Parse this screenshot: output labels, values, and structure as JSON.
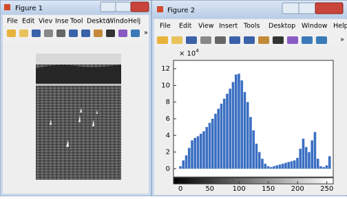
{
  "figure1": {
    "title": "Figure 1",
    "menu": [
      "File",
      "Edit",
      "Viev",
      "Inse",
      "Tool",
      "Desktc",
      "Windo",
      "Helj"
    ],
    "toolbar_more": "»"
  },
  "figure2": {
    "title": "Figure 2",
    "menu": [
      "File",
      "Edit",
      "View",
      "Insert",
      "Tools",
      "Desktop",
      "Window",
      "Help"
    ],
    "toolbar_more": "»"
  },
  "chart_data": {
    "type": "bar",
    "exponent_label": {
      "base": "× 10",
      "power": "4"
    },
    "color": "#3b6fc2",
    "x": [
      0,
      5,
      10,
      15,
      20,
      25,
      30,
      35,
      40,
      45,
      50,
      55,
      60,
      65,
      70,
      75,
      80,
      85,
      90,
      95,
      100,
      105,
      110,
      115,
      120,
      125,
      130,
      135,
      140,
      145,
      150,
      155,
      160,
      165,
      170,
      175,
      180,
      185,
      190,
      195,
      200,
      205,
      210,
      215,
      220,
      225,
      230,
      235,
      240,
      245,
      250,
      255
    ],
    "values": [
      0.3,
      1.0,
      1.6,
      2.5,
      3.4,
      3.7,
      3.9,
      4.2,
      4.5,
      5.0,
      5.5,
      6.0,
      6.6,
      7.2,
      7.8,
      8.4,
      9.0,
      9.6,
      10.4,
      11.3,
      11.4,
      10.6,
      9.2,
      8.0,
      6.2,
      4.6,
      3.0,
      2.0,
      1.2,
      0.6,
      0.3,
      0.2,
      0.3,
      0.4,
      0.5,
      0.6,
      0.7,
      0.8,
      0.9,
      1.0,
      1.3,
      2.4,
      3.6,
      2.6,
      2.0,
      3.4,
      4.4,
      1.2,
      0.3,
      0.2,
      0.4,
      1.5
    ],
    "xlim": [
      -12,
      261
    ],
    "ylim": [
      -1,
      13
    ],
    "xticks": [
      0,
      50,
      100,
      150,
      200,
      250
    ],
    "yticks": [
      0,
      2,
      4,
      6,
      8,
      10,
      12
    ]
  }
}
